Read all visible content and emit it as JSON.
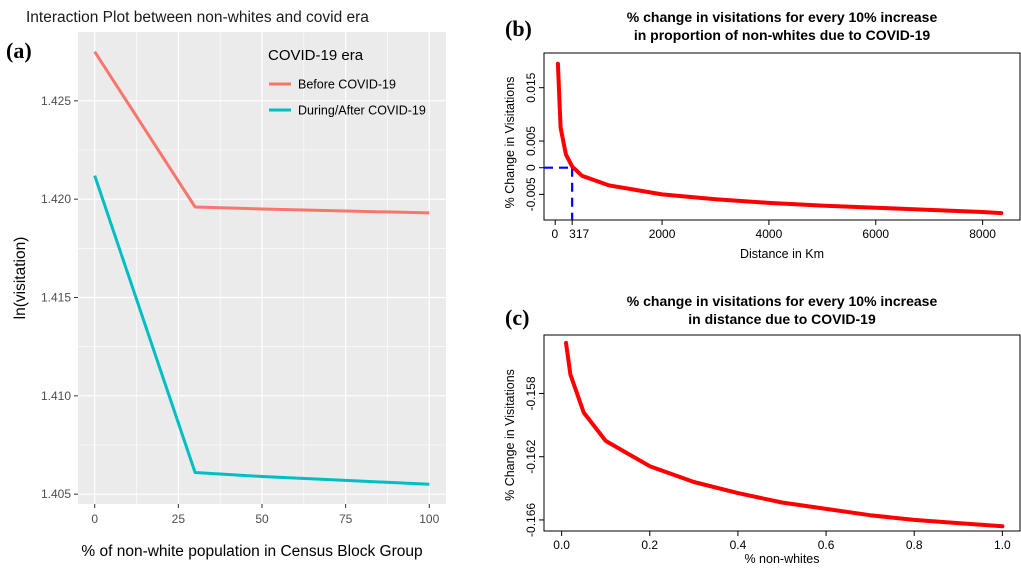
{
  "chart_data": [
    {
      "type": "line",
      "panel_label": "(a)",
      "title": "Interaction Plot between non-whites and covid era",
      "xlabel": "% of non-white population in Census Block Group",
      "ylabel": "ln(visitation)",
      "xlim": [
        -5,
        105
      ],
      "ylim": [
        1.4045,
        1.4285
      ],
      "xticks": [
        0,
        25,
        50,
        75,
        100
      ],
      "xtick_labels": [
        "0",
        "25",
        "50",
        "75",
        "100"
      ],
      "yticks": [
        1.405,
        1.41,
        1.415,
        1.42,
        1.425
      ],
      "ytick_labels": [
        "1.405",
        "1.410",
        "1.415",
        "1.420",
        "1.425"
      ],
      "background": "#ebebeb",
      "legend": {
        "title": "COVID-19 era",
        "placement": "top-right"
      },
      "series": [
        {
          "name": "Before COVID-19",
          "color": "#f8766d",
          "x": [
            0,
            30,
            50,
            75,
            100
          ],
          "y": [
            1.4275,
            1.4196,
            1.4195,
            1.4194,
            1.4193
          ]
        },
        {
          "name": "During/After COVID-19",
          "color": "#00bfc4",
          "x": [
            0,
            30,
            50,
            75,
            100
          ],
          "y": [
            1.4212,
            1.4061,
            1.4059,
            1.4057,
            1.4055
          ]
        }
      ]
    },
    {
      "type": "line",
      "panel_label": "(b)",
      "title_lines": [
        "% change in visitations for every 10% increase",
        "in proportion of non-whites due to COVID-19"
      ],
      "xlabel": "Distance in Km",
      "ylabel": "% Change in Visitations",
      "xlim": [
        -210,
        8700
      ],
      "ylim": [
        -0.0098,
        0.0215
      ],
      "xticks": [
        0,
        317,
        2000,
        4000,
        6000,
        8000
      ],
      "xtick_labels": [
        "0",
        "317",
        "2000",
        "4000",
        "6000",
        "8000"
      ],
      "yticks": [
        -0.005,
        0,
        0.005,
        0.015
      ],
      "ytick_labels": [
        "-0.005",
        "0",
        "0.005",
        "0.015"
      ],
      "series": [
        {
          "color": "#ff0000",
          "x": [
            50,
            100,
            200,
            317,
            500,
            1000,
            2000,
            3000,
            4000,
            5000,
            6000,
            7000,
            8000,
            8350
          ],
          "y": [
            0.0195,
            0.0075,
            0.0025,
            0.0002,
            -0.0015,
            -0.0033,
            -0.005,
            -0.0059,
            -0.0066,
            -0.0071,
            -0.0075,
            -0.0079,
            -0.0083,
            -0.0085
          ]
        }
      ],
      "reference_lines": {
        "y": 0,
        "x": 317,
        "color": "#0000ff"
      }
    },
    {
      "type": "line",
      "panel_label": "(c)",
      "title_lines": [
        "% change in visitations for every 10% increase",
        "in distance due to COVID-19"
      ],
      "xlabel": "% non-whites",
      "ylabel": "% Change in Visitations",
      "xlim": [
        -0.04,
        1.04
      ],
      "ylim": [
        -0.1667,
        -0.1543
      ],
      "xticks": [
        0,
        0.2,
        0.4,
        0.6,
        0.8,
        1
      ],
      "xtick_labels": [
        "0.0",
        "0.2",
        "0.4",
        "0.6",
        "0.8",
        "1.0"
      ],
      "yticks": [
        -0.166,
        -0.162,
        -0.158
      ],
      "ytick_labels": [
        "-0.166",
        "-0.162",
        "-0.158"
      ],
      "series": [
        {
          "color": "#ff0000",
          "x": [
            0.01,
            0.02,
            0.05,
            0.1,
            0.2,
            0.3,
            0.4,
            0.5,
            0.6,
            0.7,
            0.8,
            0.9,
            1.0
          ],
          "y": [
            -0.1548,
            -0.1568,
            -0.1592,
            -0.161,
            -0.1626,
            -0.1636,
            -0.1643,
            -0.1649,
            -0.1653,
            -0.1657,
            -0.166,
            -0.1662,
            -0.1664
          ]
        }
      ]
    }
  ]
}
